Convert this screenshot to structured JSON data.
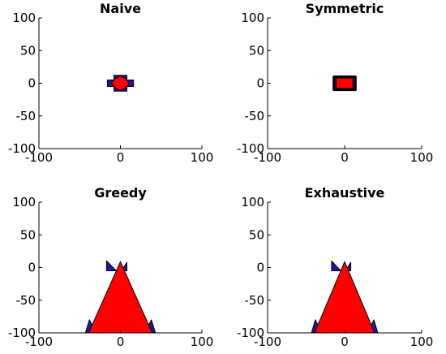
{
  "chart_data": [
    {
      "type": "polygon-plot",
      "title": "Naive",
      "xlim": [
        -100,
        100
      ],
      "ylim": [
        -100,
        100
      ],
      "xticks": [
        "-100",
        "0",
        "100"
      ],
      "yticks": [
        "100",
        "50",
        "0",
        "-50",
        "-100"
      ],
      "grid": false,
      "colors": {
        "back": "#1a1aa6",
        "front": "#ff0000"
      },
      "shapes": [
        {
          "role": "back",
          "points": [
            [
              -16,
              5
            ],
            [
              -8,
              5
            ],
            [
              -8,
              12
            ],
            [
              8,
              12
            ],
            [
              8,
              5
            ],
            [
              16,
              5
            ],
            [
              16,
              -5
            ],
            [
              8,
              -5
            ],
            [
              8,
              -12
            ],
            [
              -8,
              -12
            ],
            [
              -8,
              -5
            ],
            [
              -16,
              -5
            ]
          ]
        },
        {
          "role": "front",
          "points": [
            [
              0,
              11
            ],
            [
              7,
              7
            ],
            [
              11,
              0
            ],
            [
              7,
              -7
            ],
            [
              0,
              -11
            ],
            [
              -7,
              -7
            ],
            [
              -11,
              0
            ],
            [
              -7,
              7
            ]
          ]
        }
      ]
    },
    {
      "type": "polygon-plot",
      "title": "Symmetric",
      "xlim": [
        -100,
        100
      ],
      "ylim": [
        -100,
        100
      ],
      "xticks": [
        "-100",
        "0",
        "100"
      ],
      "yticks": [
        "100",
        "50",
        "0",
        "-50",
        "-100"
      ],
      "grid": false,
      "colors": {
        "back": "#1a1aa6",
        "front": "#ff0000"
      },
      "shapes": [
        {
          "role": "back",
          "points": [
            [
              -14,
              10
            ],
            [
              14,
              10
            ],
            [
              14,
              -10
            ],
            [
              -14,
              -10
            ]
          ],
          "stroke": "#000000",
          "stroke_width": 3
        },
        {
          "role": "front",
          "points": [
            [
              -11,
              8
            ],
            [
              11,
              8
            ],
            [
              11,
              -8
            ],
            [
              -11,
              -8
            ]
          ]
        }
      ]
    },
    {
      "type": "polygon-plot",
      "title": "Greedy",
      "xlim": [
        -100,
        100
      ],
      "ylim": [
        -100,
        100
      ],
      "xticks": [
        "-100",
        "0",
        "100"
      ],
      "yticks": [
        "100",
        "50",
        "0",
        "-50",
        "-100"
      ],
      "grid": false,
      "colors": {
        "back": "#1a1aa6",
        "front": "#ff0000"
      },
      "shapes": [
        {
          "role": "back",
          "points": [
            [
              -17,
              10
            ],
            [
              -17,
              -5
            ],
            [
              -5,
              -5
            ]
          ]
        },
        {
          "role": "back",
          "points": [
            [
              8,
              8
            ],
            [
              8,
              -5
            ],
            [
              1,
              -5
            ]
          ]
        },
        {
          "role": "back",
          "points": [
            [
              -43,
              -100
            ],
            [
              -38,
              -80
            ],
            [
              -30,
              -100
            ]
          ]
        },
        {
          "role": "back",
          "points": [
            [
              30,
              -100
            ],
            [
              38,
              -80
            ],
            [
              43,
              -100
            ]
          ]
        },
        {
          "role": "front",
          "points": [
            [
              0,
              9
            ],
            [
              -39,
              -100
            ],
            [
              39,
              -100
            ]
          ]
        }
      ]
    },
    {
      "type": "polygon-plot",
      "title": "Exhaustive",
      "xlim": [
        -100,
        100
      ],
      "ylim": [
        -100,
        100
      ],
      "xticks": [
        "-100",
        "0",
        "100"
      ],
      "yticks": [
        "100",
        "50",
        "0",
        "-50",
        "-100"
      ],
      "grid": false,
      "colors": {
        "back": "#1a1aa6",
        "front": "#ff0000"
      },
      "shapes": [
        {
          "role": "back",
          "points": [
            [
              -17,
              10
            ],
            [
              -17,
              -5
            ],
            [
              -5,
              -5
            ]
          ]
        },
        {
          "role": "back",
          "points": [
            [
              8,
              8
            ],
            [
              8,
              -5
            ],
            [
              1,
              -5
            ]
          ]
        },
        {
          "role": "back",
          "points": [
            [
              -43,
              -100
            ],
            [
              -38,
              -80
            ],
            [
              -30,
              -100
            ]
          ]
        },
        {
          "role": "back",
          "points": [
            [
              30,
              -100
            ],
            [
              38,
              -80
            ],
            [
              43,
              -100
            ]
          ]
        },
        {
          "role": "front",
          "points": [
            [
              0,
              9
            ],
            [
              -39,
              -100
            ],
            [
              39,
              -100
            ]
          ]
        }
      ]
    }
  ]
}
